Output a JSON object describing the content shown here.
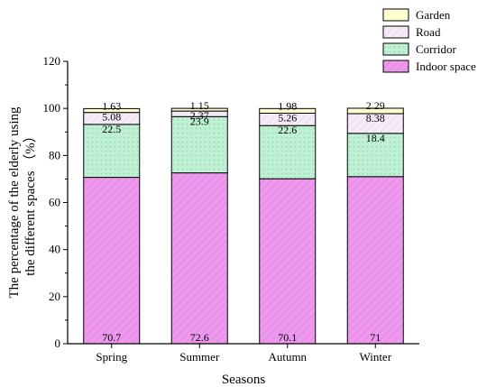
{
  "chart_data": {
    "type": "bar",
    "stacked": true,
    "categories": [
      "Spring",
      "Summer",
      "Autumn",
      "Winter"
    ],
    "series": [
      {
        "name": "Indoor space",
        "values": [
          70.7,
          72.6,
          70.1,
          71
        ],
        "labels": [
          "70.7",
          "72.6",
          "70.1",
          "71"
        ],
        "color": "#ee99ee",
        "pattern": "diagonal-hatch"
      },
      {
        "name": "Corridor",
        "values": [
          22.5,
          23.9,
          22.6,
          18.4
        ],
        "labels": [
          "22.5",
          "23.9",
          "22.6",
          "18.4"
        ],
        "color": "#bff0d4",
        "pattern": "dots"
      },
      {
        "name": "Road",
        "values": [
          5.08,
          2.37,
          5.26,
          8.38
        ],
        "labels": [
          "5.08",
          "2.37",
          "5.26",
          "8.38"
        ],
        "color": "#f5ecf7",
        "pattern": "light-hatch"
      },
      {
        "name": "Garden",
        "values": [
          1.63,
          1.15,
          1.98,
          2.29
        ],
        "labels": [
          "1.63",
          "1.15",
          "1.98",
          "2.29"
        ],
        "color": "#ffffd0",
        "pattern": "none"
      }
    ],
    "xlabel": "Seasons",
    "ylabel_line1": "The percentage of the elderly using",
    "ylabel_line2": "the different spaces （%）",
    "ylim": [
      0,
      120
    ],
    "yticks": [
      "0",
      "20",
      "40",
      "60",
      "80",
      "100",
      "120"
    ],
    "grid": false,
    "legend_position": "top-right"
  }
}
